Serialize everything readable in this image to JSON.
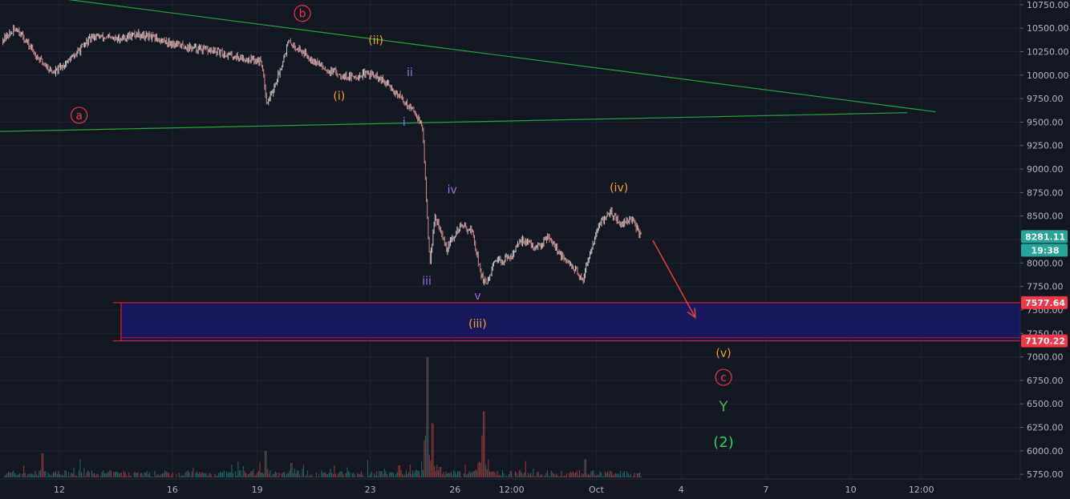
{
  "chart_data": {
    "type": "candlestick",
    "title": "",
    "y_ticks": [
      "10750.00",
      "10500.00",
      "10250.00",
      "10000.00",
      "9750.00",
      "9500.00",
      "9250.00",
      "9000.00",
      "8750.00",
      "8500.00",
      "8250.00",
      "8000.00",
      "7750.00",
      "7500.00",
      "7250.00",
      "7000.00",
      "6750.00",
      "6500.00",
      "6250.00",
      "6000.00",
      "5750.00"
    ],
    "ylim": [
      5700,
      10800
    ],
    "x_ticks": [
      {
        "label": "12",
        "day": 12
      },
      {
        "label": "16",
        "day": 16
      },
      {
        "label": "19",
        "day": 19
      },
      {
        "label": "23",
        "day": 23
      },
      {
        "label": "26",
        "day": 26
      },
      {
        "label": "12:00",
        "day": 28
      },
      {
        "label": "Oct",
        "day": 31
      },
      {
        "label": "4",
        "day": 34
      },
      {
        "label": "7",
        "day": 37
      },
      {
        "label": "10",
        "day": 40
      },
      {
        "label": "12:00",
        "day": 42.5
      }
    ],
    "xlim": [
      9.9,
      46
    ],
    "price_path": [
      {
        "day": 10.0,
        "price": 10380
      },
      {
        "day": 10.5,
        "price": 10500
      },
      {
        "day": 11.2,
        "price": 10200
      },
      {
        "day": 11.8,
        "price": 10020
      },
      {
        "day": 12.5,
        "price": 10200
      },
      {
        "day": 13.2,
        "price": 10420
      },
      {
        "day": 14.0,
        "price": 10380
      },
      {
        "day": 14.8,
        "price": 10440
      },
      {
        "day": 15.5,
        "price": 10380
      },
      {
        "day": 16.5,
        "price": 10300
      },
      {
        "day": 17.5,
        "price": 10250
      },
      {
        "day": 18.5,
        "price": 10180
      },
      {
        "day": 19.15,
        "price": 10150
      },
      {
        "day": 19.35,
        "price": 9700
      },
      {
        "day": 19.7,
        "price": 9950
      },
      {
        "day": 20.1,
        "price": 10350
      },
      {
        "day": 20.6,
        "price": 10250
      },
      {
        "day": 21.5,
        "price": 10050
      },
      {
        "day": 22.3,
        "price": 9980
      },
      {
        "day": 23.0,
        "price": 10020
      },
      {
        "day": 23.7,
        "price": 9880
      },
      {
        "day": 24.2,
        "price": 9720
      },
      {
        "day": 24.6,
        "price": 9600
      },
      {
        "day": 24.85,
        "price": 9450
      },
      {
        "day": 25.0,
        "price": 8600
      },
      {
        "day": 25.1,
        "price": 8000
      },
      {
        "day": 25.3,
        "price": 8500
      },
      {
        "day": 25.7,
        "price": 8150
      },
      {
        "day": 26.2,
        "price": 8400
      },
      {
        "day": 26.6,
        "price": 8350
      },
      {
        "day": 26.9,
        "price": 7900
      },
      {
        "day": 27.1,
        "price": 7750
      },
      {
        "day": 27.4,
        "price": 8000
      },
      {
        "day": 27.9,
        "price": 8050
      },
      {
        "day": 28.4,
        "price": 8250
      },
      {
        "day": 28.9,
        "price": 8150
      },
      {
        "day": 29.3,
        "price": 8300
      },
      {
        "day": 29.8,
        "price": 8050
      },
      {
        "day": 30.2,
        "price": 7950
      },
      {
        "day": 30.5,
        "price": 7800
      },
      {
        "day": 30.8,
        "price": 8150
      },
      {
        "day": 31.1,
        "price": 8400
      },
      {
        "day": 31.5,
        "price": 8550
      },
      {
        "day": 31.9,
        "price": 8400
      },
      {
        "day": 32.2,
        "price": 8480
      },
      {
        "day": 32.6,
        "price": 8281
      }
    ],
    "volume_spikes": [
      {
        "day": 11.4,
        "v": 0.2
      },
      {
        "day": 19.3,
        "v": 0.22
      },
      {
        "day": 20.2,
        "v": 0.12
      },
      {
        "day": 24.0,
        "v": 0.1
      },
      {
        "day": 25.0,
        "v": 1.0
      },
      {
        "day": 25.2,
        "v": 0.45
      },
      {
        "day": 27.0,
        "v": 0.55
      },
      {
        "day": 26.95,
        "v": 0.35
      },
      {
        "day": 30.6,
        "v": 0.15
      }
    ],
    "trendlines": [
      {
        "name": "upper",
        "from": [
          10.9,
          10860
        ],
        "to": [
          43.0,
          9610
        ],
        "color": "#26a33c"
      },
      {
        "name": "lower",
        "from": [
          9.9,
          9400
        ],
        "to": [
          42.0,
          9600
        ],
        "color": "#26a33c"
      }
    ],
    "target_zone": {
      "from_day": 13.9,
      "to_day": 46,
      "top": 7577.64,
      "bottom": 7170.22,
      "fill": "#1a1a66",
      "border": "#ff2222"
    },
    "projection_arrow": {
      "from": [
        33.0,
        8240
      ],
      "to": [
        34.5,
        7420
      ],
      "color": "#e5403a"
    },
    "wave_labels": [
      {
        "text": "b",
        "day": 20.6,
        "price": 10615,
        "color": "#f23645",
        "circled": true,
        "size": 14
      },
      {
        "text": "a",
        "day": 12.7,
        "price": 9530,
        "color": "#f23645",
        "circled": true,
        "size": 14
      },
      {
        "text": "c",
        "day": 35.5,
        "price": 6740,
        "color": "#f23645",
        "circled": true,
        "size": 14
      },
      {
        "text": "(ii)",
        "day": 23.2,
        "price": 10330,
        "color": "#f5a623",
        "circled": false,
        "size": 14
      },
      {
        "text": "(i)",
        "day": 21.9,
        "price": 9740,
        "color": "#f5a623",
        "circled": false,
        "size": 14
      },
      {
        "text": "(iii)",
        "day": 26.8,
        "price": 7310,
        "color": "#f5a623",
        "circled": false,
        "size": 14
      },
      {
        "text": "(iv)",
        "day": 31.8,
        "price": 8760,
        "color": "#f5a623",
        "circled": false,
        "size": 14
      },
      {
        "text": "(v)",
        "day": 35.5,
        "price": 7000,
        "color": "#f5a623",
        "circled": false,
        "size": 14
      },
      {
        "text": "ii",
        "day": 24.4,
        "price": 9990,
        "color": "#9c6fe6",
        "circled": false,
        "size": 14
      },
      {
        "text": "i",
        "day": 24.2,
        "price": 9460,
        "color": "#9c6fe6",
        "circled": false,
        "size": 14
      },
      {
        "text": "iii",
        "day": 25.0,
        "price": 7770,
        "color": "#9c6fe6",
        "circled": false,
        "size": 14
      },
      {
        "text": "iv",
        "day": 25.9,
        "price": 8740,
        "color": "#9c6fe6",
        "circled": false,
        "size": 14
      },
      {
        "text": "v",
        "day": 26.8,
        "price": 7610,
        "color": "#9c6fe6",
        "circled": false,
        "size": 14
      },
      {
        "text": "Y",
        "day": 35.5,
        "price": 6420,
        "color": "#4caf50",
        "circled": false,
        "size": 18
      },
      {
        "text": "(2)",
        "day": 35.5,
        "price": 6040,
        "color": "#1ed760",
        "circled": false,
        "size": 18
      }
    ],
    "price_badges": [
      {
        "text": "8281.11",
        "price": 8281.11,
        "color": "#26a69a"
      },
      {
        "text": "19:38",
        "price": 8150,
        "color": "#26a69a"
      },
      {
        "text": "7577.64",
        "price": 7577.64,
        "color": "#f23645"
      },
      {
        "text": "7170.22",
        "price": 7170.22,
        "color": "#f23645"
      }
    ]
  }
}
